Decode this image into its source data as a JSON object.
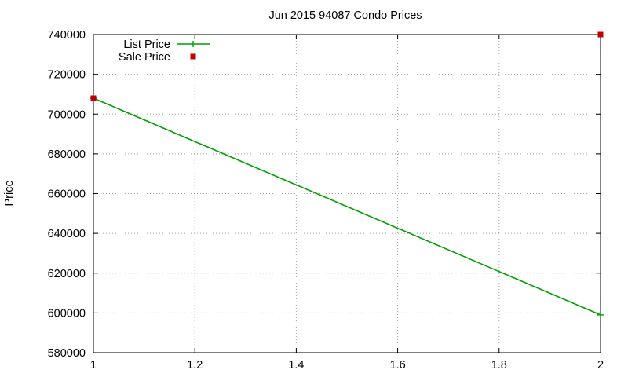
{
  "chart_data": {
    "type": "line",
    "title": "Jun 2015 94087 Condo Prices",
    "xlabel": "",
    "ylabel": "Price",
    "xlim": [
      1,
      2
    ],
    "ylim": [
      580000,
      740000
    ],
    "x_ticks": [
      "1",
      "1.2",
      "1.4",
      "1.6",
      "1.8",
      "2"
    ],
    "y_ticks": [
      "580000",
      "600000",
      "620000",
      "640000",
      "660000",
      "680000",
      "700000",
      "720000",
      "740000"
    ],
    "grid": true,
    "legend_position": "top-left",
    "series": [
      {
        "name": "List Price",
        "style": "line+crosshair",
        "color": "#009e00",
        "points": [
          {
            "x": 1,
            "y": 708000
          },
          {
            "x": 2,
            "y": 599000
          }
        ]
      },
      {
        "name": "Sale Price",
        "style": "square-markers",
        "color": "#c00000",
        "points": [
          {
            "x": 1,
            "y": 708000
          },
          {
            "x": 2,
            "y": 740000
          }
        ]
      }
    ]
  }
}
